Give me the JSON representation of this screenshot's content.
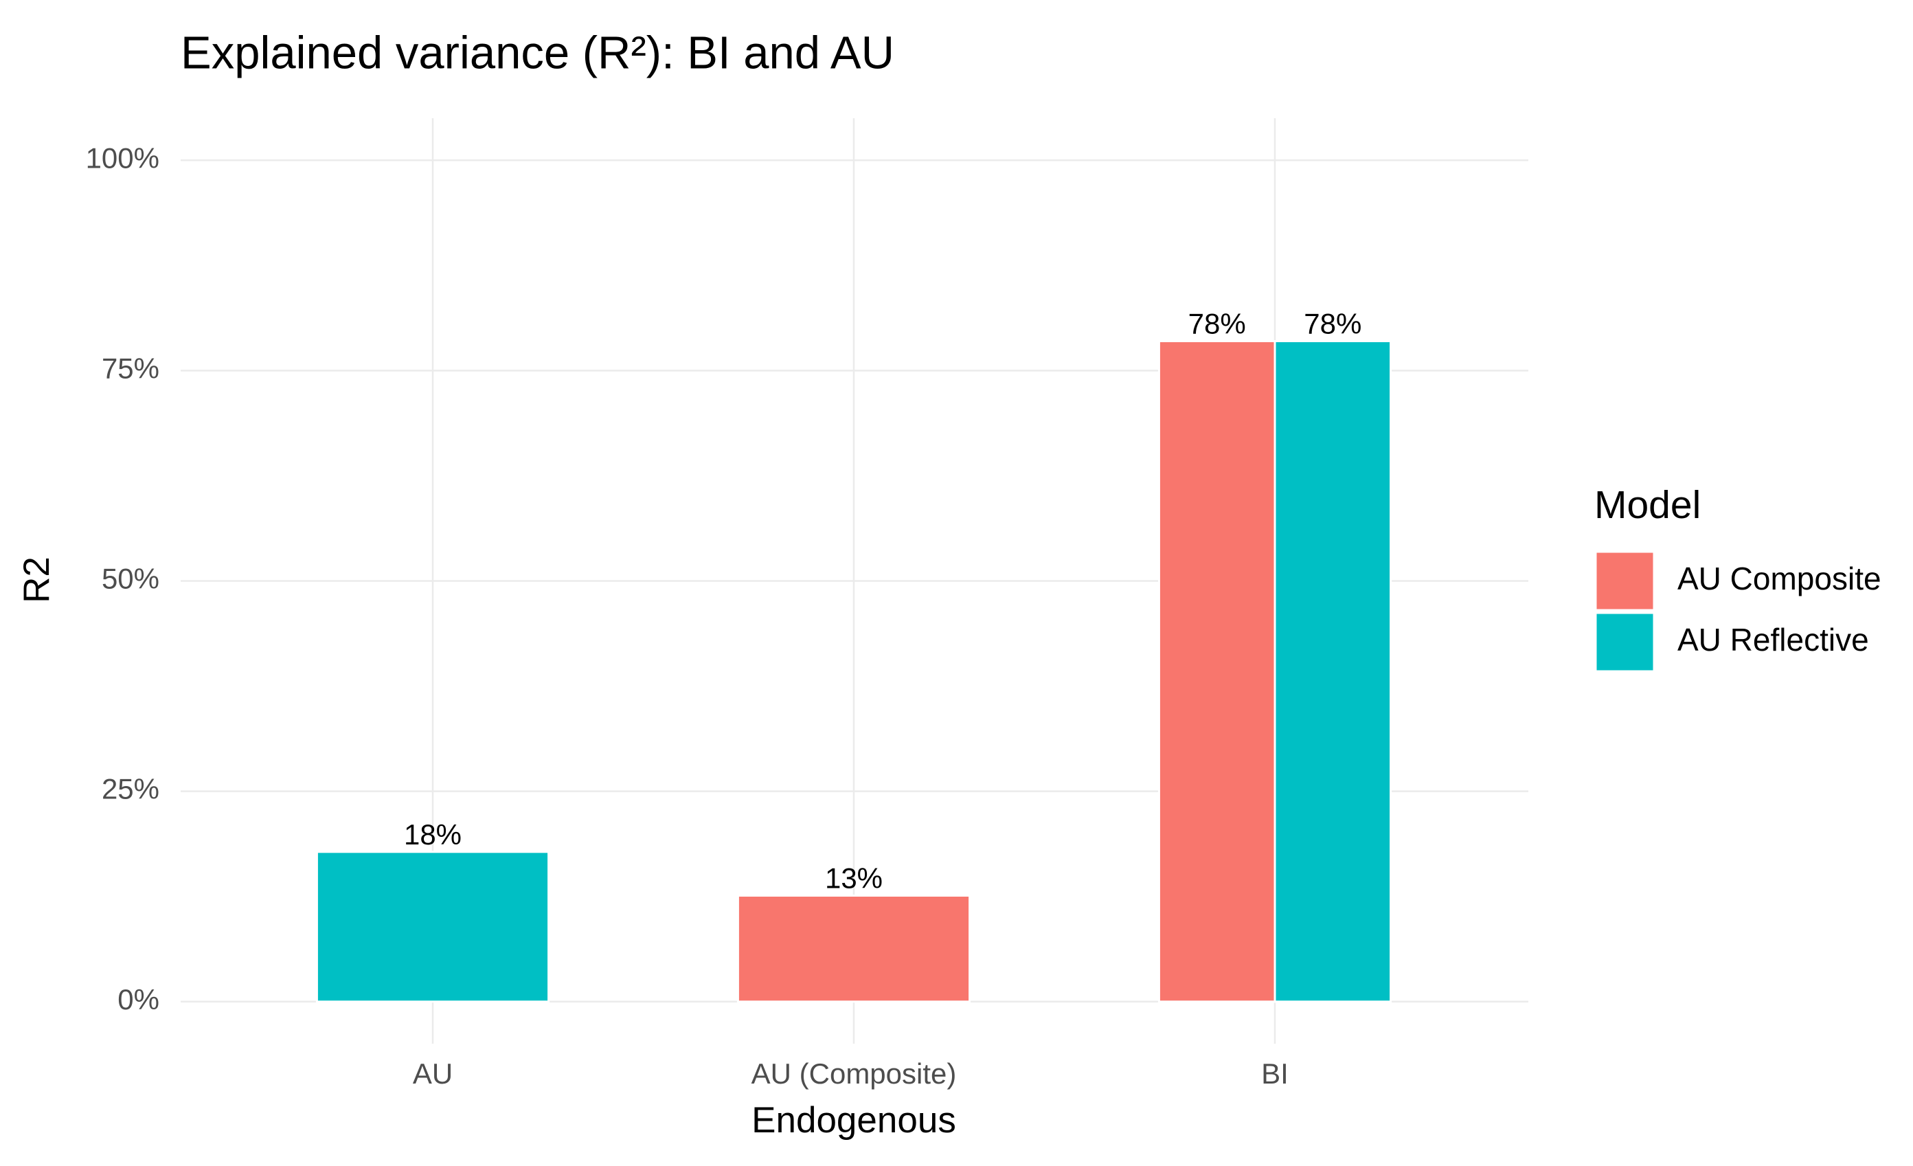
{
  "chart_data": {
    "type": "bar",
    "title": "Explained variance (R²): BI and AU",
    "x_label": "Endogenous",
    "y_label": "R2",
    "categories": [
      "AU",
      "AU (Composite)",
      "BI"
    ],
    "series": [
      {
        "name": "AU Composite",
        "color": "#f8766d",
        "values": [
          null,
          12.6,
          78.5
        ],
        "value_labels": [
          null,
          "13%",
          "78%"
        ]
      },
      {
        "name": "AU Reflective",
        "color": "#00bfc4",
        "values": [
          17.8,
          null,
          78.5
        ],
        "value_labels": [
          "18%",
          null,
          "78%"
        ]
      }
    ],
    "legend_title": "Model",
    "legend": "right",
    "ylim": [
      -5,
      105
    ],
    "yticks": [
      {
        "value": 0,
        "label": "0%"
      },
      {
        "value": 25,
        "label": "25%"
      },
      {
        "value": 50,
        "label": "50%"
      },
      {
        "value": 75,
        "label": "75%"
      },
      {
        "value": 100,
        "label": "100%"
      }
    ],
    "grid": true
  }
}
